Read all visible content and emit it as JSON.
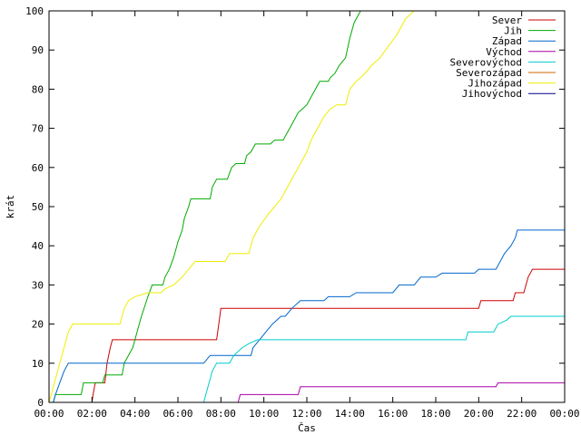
{
  "chart_data": {
    "type": "line",
    "xlabel": "Čas",
    "ylabel": "krát",
    "xlim": [
      0,
      24
    ],
    "ylim": [
      0,
      100
    ],
    "grid": false,
    "legend_position": "top-right",
    "x_ticks": [
      {
        "value": 0,
        "label": "00:00"
      },
      {
        "value": 2,
        "label": "02:00"
      },
      {
        "value": 4,
        "label": "04:00"
      },
      {
        "value": 6,
        "label": "06:00"
      },
      {
        "value": 8,
        "label": "08:00"
      },
      {
        "value": 10,
        "label": "10:00"
      },
      {
        "value": 12,
        "label": "12:00"
      },
      {
        "value": 14,
        "label": "14:00"
      },
      {
        "value": 16,
        "label": "16:00"
      },
      {
        "value": 18,
        "label": "18:00"
      },
      {
        "value": 20,
        "label": "20:00"
      },
      {
        "value": 22,
        "label": "22:00"
      },
      {
        "value": 24,
        "label": "00:00"
      }
    ],
    "y_ticks": [
      0,
      10,
      20,
      30,
      40,
      50,
      60,
      70,
      80,
      90,
      100
    ],
    "series": [
      {
        "name": "Sever",
        "color": "#cc0000",
        "points": [
          [
            2.0,
            0
          ],
          [
            2.05,
            2
          ],
          [
            2.15,
            5
          ],
          [
            2.6,
            5
          ],
          [
            2.7,
            10
          ],
          [
            2.85,
            14
          ],
          [
            2.95,
            16
          ],
          [
            7.8,
            16
          ],
          [
            7.9,
            20
          ],
          [
            8.0,
            24
          ],
          [
            20.0,
            24
          ],
          [
            20.1,
            26
          ],
          [
            21.6,
            26
          ],
          [
            21.7,
            28
          ],
          [
            22.1,
            28
          ],
          [
            22.3,
            32
          ],
          [
            22.5,
            34
          ],
          [
            24,
            34
          ]
        ]
      },
      {
        "name": "Jih",
        "color": "#00aa00",
        "points": [
          [
            0,
            0
          ],
          [
            0.2,
            0
          ],
          [
            0.3,
            2
          ],
          [
            1.5,
            2
          ],
          [
            1.6,
            5
          ],
          [
            2.5,
            5
          ],
          [
            2.6,
            7
          ],
          [
            3.4,
            7
          ],
          [
            3.5,
            10
          ],
          [
            3.9,
            14
          ],
          [
            4.1,
            18
          ],
          [
            4.3,
            22
          ],
          [
            4.6,
            27
          ],
          [
            4.8,
            30
          ],
          [
            5.3,
            30
          ],
          [
            5.4,
            32
          ],
          [
            5.6,
            34
          ],
          [
            5.8,
            37
          ],
          [
            6.0,
            41
          ],
          [
            6.2,
            44
          ],
          [
            6.3,
            47
          ],
          [
            6.5,
            50
          ],
          [
            6.6,
            52
          ],
          [
            7.5,
            52
          ],
          [
            7.6,
            55
          ],
          [
            7.8,
            57
          ],
          [
            8.3,
            57
          ],
          [
            8.5,
            60
          ],
          [
            8.7,
            61
          ],
          [
            9.1,
            61
          ],
          [
            9.2,
            63
          ],
          [
            9.4,
            64
          ],
          [
            9.6,
            66
          ],
          [
            10.3,
            66
          ],
          [
            10.5,
            67
          ],
          [
            10.9,
            67
          ],
          [
            11.0,
            68
          ],
          [
            11.2,
            70
          ],
          [
            11.4,
            72
          ],
          [
            11.6,
            74
          ],
          [
            11.8,
            75
          ],
          [
            12.0,
            76
          ],
          [
            12.2,
            78
          ],
          [
            12.4,
            80
          ],
          [
            12.6,
            82
          ],
          [
            13.0,
            82
          ],
          [
            13.1,
            83
          ],
          [
            13.3,
            84
          ],
          [
            13.5,
            86
          ],
          [
            13.8,
            88
          ],
          [
            14.0,
            93
          ],
          [
            14.2,
            97
          ],
          [
            14.5,
            100
          ]
        ]
      },
      {
        "name": "Západ",
        "color": "#0066cc",
        "points": [
          [
            0,
            0
          ],
          [
            0.2,
            0
          ],
          [
            0.3,
            2
          ],
          [
            0.5,
            5
          ],
          [
            0.7,
            8
          ],
          [
            0.9,
            10
          ],
          [
            7.2,
            10
          ],
          [
            7.5,
            12
          ],
          [
            9.4,
            12
          ],
          [
            9.5,
            14
          ],
          [
            9.8,
            16
          ],
          [
            10.1,
            18
          ],
          [
            10.4,
            20
          ],
          [
            10.8,
            22
          ],
          [
            11.0,
            22
          ],
          [
            11.3,
            24
          ],
          [
            11.7,
            26
          ],
          [
            12.0,
            26
          ],
          [
            12.3,
            26
          ],
          [
            12.8,
            26
          ],
          [
            13.0,
            27
          ],
          [
            14.0,
            27
          ],
          [
            14.3,
            28
          ],
          [
            16.0,
            28
          ],
          [
            16.3,
            30
          ],
          [
            17.0,
            30
          ],
          [
            17.3,
            32
          ],
          [
            18.0,
            32
          ],
          [
            18.3,
            33
          ],
          [
            19.8,
            33
          ],
          [
            20.0,
            34
          ],
          [
            20.8,
            34
          ],
          [
            21.0,
            36
          ],
          [
            21.2,
            38
          ],
          [
            21.5,
            40
          ],
          [
            21.7,
            42
          ],
          [
            21.8,
            44
          ],
          [
            24,
            44
          ]
        ]
      },
      {
        "name": "Východ",
        "color": "#aa00aa",
        "points": [
          [
            8.8,
            0
          ],
          [
            8.9,
            2
          ],
          [
            11.6,
            2
          ],
          [
            11.7,
            4
          ],
          [
            20.8,
            4
          ],
          [
            20.9,
            5
          ],
          [
            24,
            5
          ]
        ]
      },
      {
        "name": "Severovýchod",
        "color": "#00cccc",
        "points": [
          [
            7.2,
            0
          ],
          [
            7.4,
            4
          ],
          [
            7.6,
            8
          ],
          [
            7.8,
            10
          ],
          [
            8.4,
            10
          ],
          [
            8.6,
            12
          ],
          [
            9.0,
            14
          ],
          [
            9.3,
            15
          ],
          [
            9.7,
            16
          ],
          [
            19.4,
            16
          ],
          [
            19.5,
            18
          ],
          [
            20.7,
            18
          ],
          [
            20.9,
            20
          ],
          [
            21.3,
            21
          ],
          [
            21.5,
            22
          ],
          [
            24,
            22
          ]
        ]
      },
      {
        "name": "Severozápad",
        "color": "#cc6600",
        "points": []
      },
      {
        "name": "Jihozápad",
        "color": "#eeee00",
        "points": [
          [
            0,
            0
          ],
          [
            0.1,
            2
          ],
          [
            0.3,
            6
          ],
          [
            0.5,
            10
          ],
          [
            0.7,
            14
          ],
          [
            0.9,
            18
          ],
          [
            1.1,
            20
          ],
          [
            3.3,
            20
          ],
          [
            3.5,
            24
          ],
          [
            3.7,
            26
          ],
          [
            4.0,
            27
          ],
          [
            4.6,
            28
          ],
          [
            5.2,
            28
          ],
          [
            5.4,
            29
          ],
          [
            5.8,
            30
          ],
          [
            6.2,
            32
          ],
          [
            6.5,
            34
          ],
          [
            6.8,
            36
          ],
          [
            8.2,
            36
          ],
          [
            8.4,
            38
          ],
          [
            9.3,
            38
          ],
          [
            9.5,
            42
          ],
          [
            9.8,
            45
          ],
          [
            10.2,
            48
          ],
          [
            10.5,
            50
          ],
          [
            10.8,
            52
          ],
          [
            11.1,
            55
          ],
          [
            11.4,
            58
          ],
          [
            11.8,
            62
          ],
          [
            12.0,
            64
          ],
          [
            12.2,
            67
          ],
          [
            12.5,
            70
          ],
          [
            12.8,
            73
          ],
          [
            13.1,
            75
          ],
          [
            13.4,
            76
          ],
          [
            13.8,
            76
          ],
          [
            14.0,
            80
          ],
          [
            14.3,
            82
          ],
          [
            14.7,
            84
          ],
          [
            15.0,
            86
          ],
          [
            15.4,
            88
          ],
          [
            15.8,
            91
          ],
          [
            16.2,
            94
          ],
          [
            16.6,
            98
          ],
          [
            17.0,
            100
          ]
        ]
      },
      {
        "name": "Jihovýchod",
        "color": "#000088",
        "points": []
      }
    ]
  }
}
